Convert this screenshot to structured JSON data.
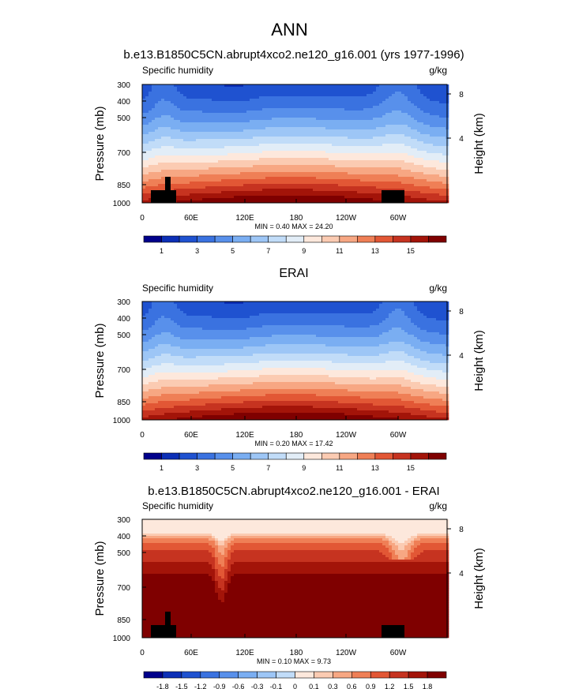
{
  "page_title": "ANN",
  "chart_data": [
    {
      "type": "heatmap",
      "title": "b.e13.B1850C5CN.abrupt4xco2.ne120_g16.001 (yrs 1977-1996)",
      "subtitle_left": "Specific humidity",
      "subtitle_right": "g/kg",
      "xlabel": "",
      "ylabel": "Pressure (mb)",
      "ylabel_right": "Height (km)",
      "x_ticks": [
        "0",
        "60E",
        "120E",
        "180",
        "120W",
        "60W"
      ],
      "y_ticks": [
        "300",
        "400",
        "500",
        "700",
        "850",
        "1000"
      ],
      "y_ticks_right": [
        "8",
        "4"
      ],
      "stats": "MIN =   0.40  MAX =  24.20",
      "min": 0.4,
      "max": 24.2,
      "colorbar_ticks": [
        "1",
        "3",
        "5",
        "7",
        "9",
        "11",
        "13",
        "15"
      ],
      "colors": [
        "#00008b",
        "#0c2fb6",
        "#1f52d0",
        "#3a72e0",
        "#5890eb",
        "#7aaef2",
        "#9dc6f6",
        "#c1dcf8",
        "#e2edf7",
        "#fde8dc",
        "#fbcbb2",
        "#f7a783",
        "#ef7f56",
        "#e25735",
        "#c63320",
        "#a31409",
        "#7f0000"
      ]
    },
    {
      "type": "heatmap",
      "title": "ERAI",
      "subtitle_left": "Specific humidity",
      "subtitle_right": "g/kg",
      "xlabel": "",
      "ylabel": "Pressure (mb)",
      "ylabel_right": "Height (km)",
      "x_ticks": [
        "0",
        "60E",
        "120E",
        "180",
        "120W",
        "60W"
      ],
      "y_ticks": [
        "300",
        "400",
        "500",
        "700",
        "850",
        "1000"
      ],
      "y_ticks_right": [
        "8",
        "4"
      ],
      "stats": "MIN =   0.20  MAX =  17.42",
      "min": 0.2,
      "max": 17.42,
      "colorbar_ticks": [
        "1",
        "3",
        "5",
        "7",
        "9",
        "11",
        "13",
        "15"
      ],
      "colors": [
        "#00008b",
        "#0c2fb6",
        "#1f52d0",
        "#3a72e0",
        "#5890eb",
        "#7aaef2",
        "#9dc6f6",
        "#c1dcf8",
        "#e2edf7",
        "#fde8dc",
        "#fbcbb2",
        "#f7a783",
        "#ef7f56",
        "#e25735",
        "#c63320",
        "#a31409",
        "#7f0000"
      ]
    },
    {
      "type": "heatmap",
      "title": "b.e13.B1850C5CN.abrupt4xco2.ne120_g16.001 - ERAI",
      "subtitle_left": "Specific humidity",
      "subtitle_right": "g/kg",
      "xlabel": "",
      "ylabel": "Pressure (mb)",
      "ylabel_right": "Height (km)",
      "x_ticks": [
        "0",
        "60E",
        "120E",
        "180",
        "120W",
        "60W"
      ],
      "y_ticks": [
        "300",
        "400",
        "500",
        "700",
        "850",
        "1000"
      ],
      "y_ticks_right": [
        "8",
        "4"
      ],
      "stats": "MIN =   0.10  MAX =   9.73",
      "min": 0.1,
      "max": 9.73,
      "colorbar_ticks": [
        "-1.8",
        "-1.5",
        "-1.2",
        "-0.9",
        "-0.6",
        "-0.3",
        "-0.1",
        "0",
        "0.1",
        "0.3",
        "0.6",
        "0.9",
        "1.2",
        "1.5",
        "1.8"
      ],
      "colors": [
        "#00008b",
        "#0c2fb6",
        "#1f52d0",
        "#3a72e0",
        "#5890eb",
        "#7aaef2",
        "#9dc6f6",
        "#c1dcf8",
        "#fde8dc",
        "#fbcbb2",
        "#f7a783",
        "#ef7f56",
        "#e25735",
        "#c63320",
        "#a31409",
        "#7f0000"
      ]
    }
  ]
}
